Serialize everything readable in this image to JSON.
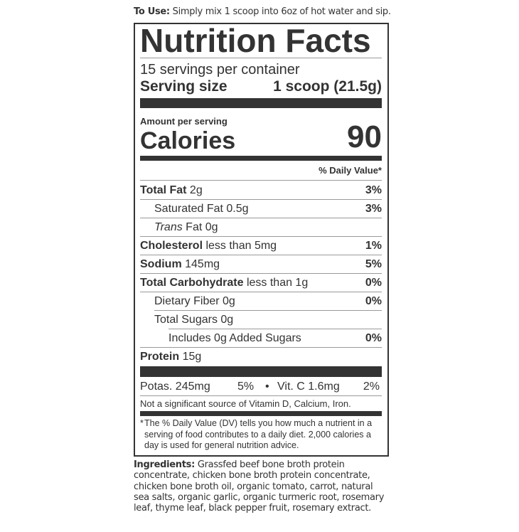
{
  "directions": {
    "label": "To Use:",
    "text": " Simply mix 1 scoop into 6oz of hot water and sip."
  },
  "label": {
    "title": "Nutrition Facts",
    "servings_per_container": "15 servings per container",
    "serving_size_label": "Serving size",
    "serving_size_value": "1 scoop (21.5g)",
    "amount_per_serving": "Amount per serving",
    "calories_label": "Calories",
    "calories_value": "90",
    "daily_value_header": "% Daily Value*",
    "nutrients": [
      {
        "name": "Total Fat",
        "amount": " 2g",
        "dv": "3%"
      },
      {
        "name": "Saturated Fat 0.5g",
        "amount": "",
        "dv": "3%"
      },
      {
        "name": "Trans",
        "amount": " Fat 0g",
        "dv": ""
      },
      {
        "name": "Cholesterol",
        "amount": " less than 5mg",
        "dv": "1%"
      },
      {
        "name": "Sodium",
        "amount": " 145mg",
        "dv": "5%"
      },
      {
        "name": "Total Carbohydrate",
        "amount": " less than 1g",
        "dv": "0%"
      },
      {
        "name": "Dietary Fiber 0g",
        "amount": "",
        "dv": "0%"
      },
      {
        "name": "Total Sugars 0g",
        "amount": "",
        "dv": ""
      },
      {
        "name": "Includes 0g Added Sugars",
        "amount": "",
        "dv": "0%"
      },
      {
        "name": "Protein",
        "amount": " 15g",
        "dv": ""
      }
    ],
    "vitamins": {
      "potassium": "Potas. 245mg",
      "potassium_dv": "5%",
      "bullet": "•",
      "vitamin_c": "Vit. C 1.6mg",
      "vitamin_c_dv": "2%"
    },
    "not_significant": "Not a significant source of Vitamin D, Calcium, Iron.",
    "footnote_star": "*",
    "footnote": "The % Daily Value (DV) tells you how much a nutrient in a serving of food contributes to a daily diet. 2,000 calories a day is used for general nutrition advice."
  },
  "ingredients": {
    "label": "Ingredients:",
    "text": " Grassfed beef bone broth protein concentrate, chicken bone broth protein concentrate, chicken bone broth oil, organic tomato, carrot, natural sea salts, organic garlic, organic turmeric root, rosemary leaf, thyme leaf, black pepper fruit, rosemary extract."
  }
}
